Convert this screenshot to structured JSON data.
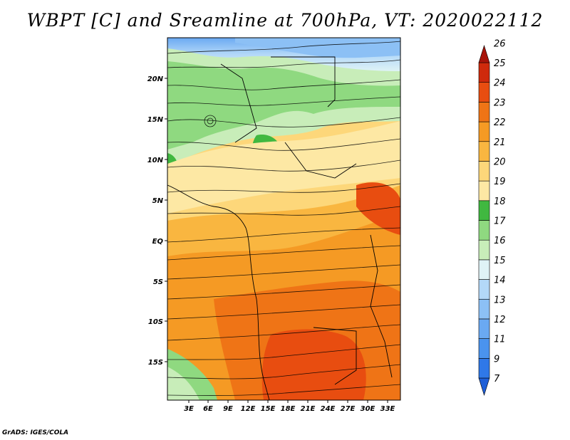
{
  "title": "WBPT [C] and Sreamline at 700hPa, VT: 2020022112",
  "credit": "GrADS: IGES/COLA",
  "map": {
    "lat_labels": [
      "20N",
      "15N",
      "10N",
      "5N",
      "EQ",
      "5S",
      "10S",
      "15S"
    ],
    "lon_labels": [
      "3E",
      "6E",
      "9E",
      "12E",
      "15E",
      "18E",
      "21E",
      "24E",
      "27E",
      "30E",
      "33E"
    ]
  },
  "colorbar": {
    "levels": [
      "7",
      "9",
      "11",
      "12",
      "13",
      "14",
      "15",
      "16",
      "17",
      "18",
      "19",
      "20",
      "21",
      "22",
      "23",
      "24",
      "25",
      "26"
    ],
    "colors": [
      "#1e5fd8",
      "#2f78e8",
      "#4a93ee",
      "#6aa9f2",
      "#8cc0f5",
      "#b3d8f8",
      "#dff3f6",
      "#c8edb9",
      "#8fd980",
      "#40b840",
      "#fde8a4",
      "#fdd77a",
      "#f9b640",
      "#f59a24",
      "#ef7416",
      "#e84d10",
      "#cf2a0c",
      "#a8140a"
    ]
  },
  "colors": {
    "stream": "#000000",
    "background": "#ffffff"
  }
}
